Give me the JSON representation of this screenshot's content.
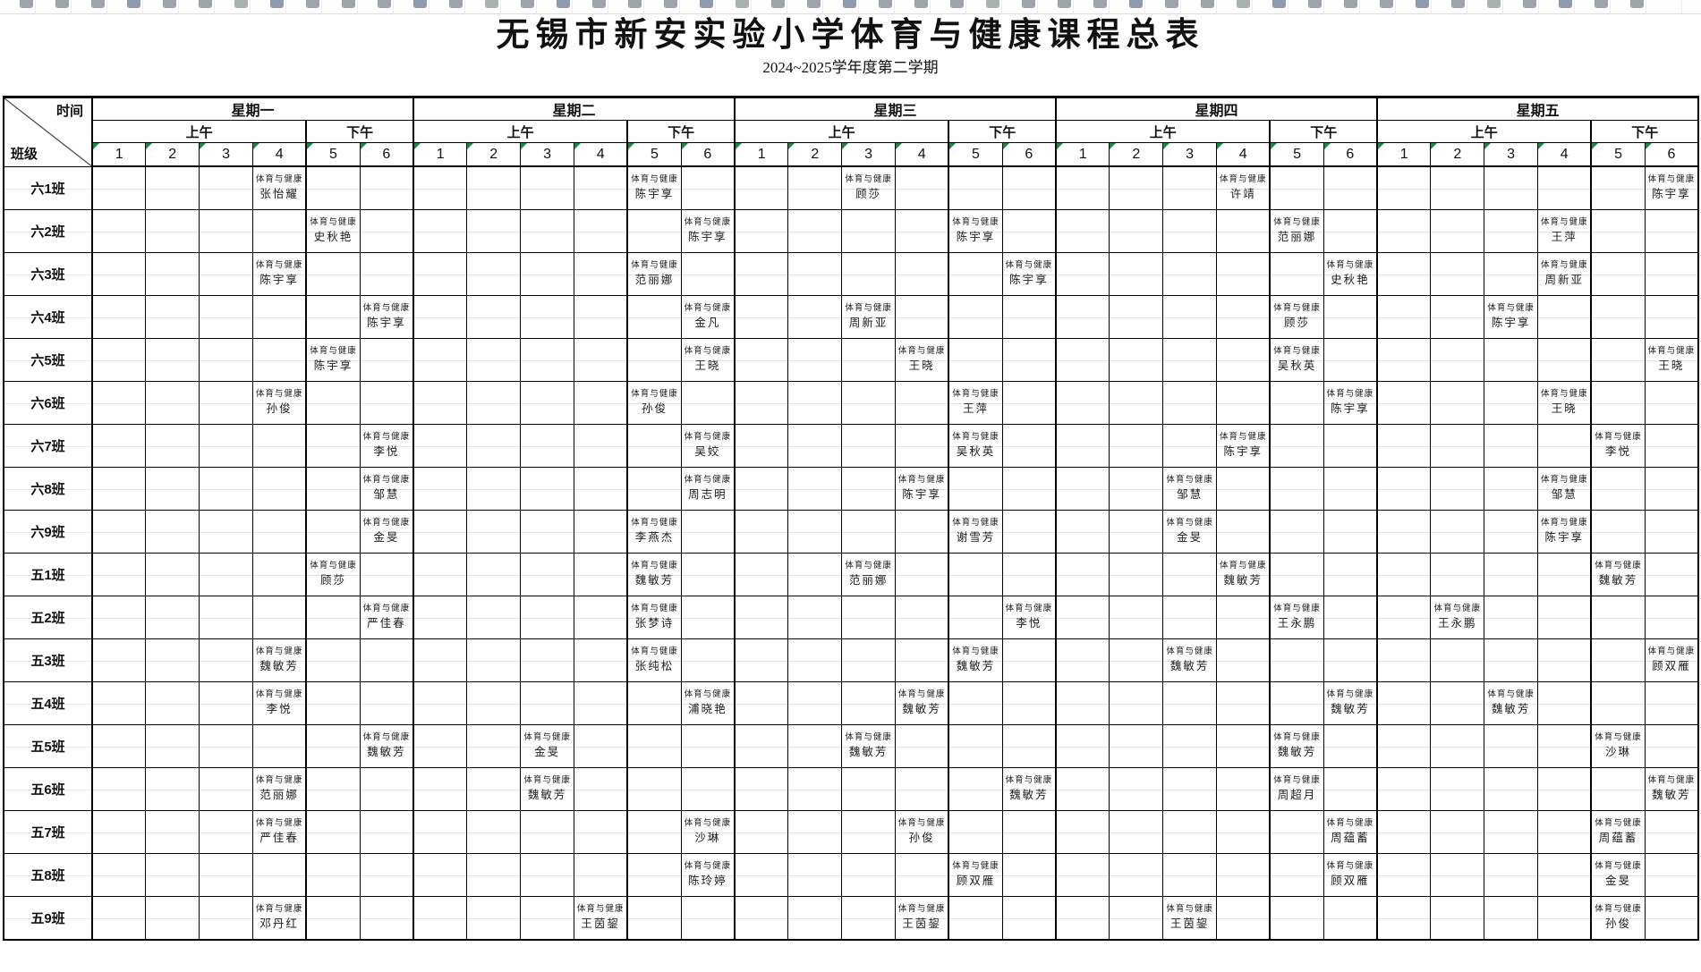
{
  "toolbar": {
    "icon_count": 46
  },
  "title": "无锡市新安实验小学体育与健康课程总表",
  "subtitle": "2024~2025学年度第二学期",
  "header": {
    "corner_top": "时间",
    "corner_bottom": "班级",
    "days": [
      "星期一",
      "星期二",
      "星期三",
      "星期四",
      "星期五"
    ],
    "sessions": [
      "上午",
      "下午"
    ],
    "periods": [
      "1",
      "2",
      "3",
      "4",
      "5",
      "6"
    ],
    "morning_period_count": 4
  },
  "subject": "体育与健康",
  "accent_colors": {
    "error_marker_green": "#168a3f",
    "grid_black": "#000000",
    "faint_grid": "#e3e3e3"
  },
  "rows": [
    {
      "name": "六1班",
      "lessons": [
        {
          "d": 0,
          "p": 4,
          "t": "张怡耀"
        },
        {
          "d": 1,
          "p": 5,
          "t": "陈宇享"
        },
        {
          "d": 2,
          "p": 3,
          "t": "顾莎"
        },
        {
          "d": 3,
          "p": 4,
          "t": "许靖"
        },
        {
          "d": 4,
          "p": 6,
          "t": "陈宇享"
        }
      ]
    },
    {
      "name": "六2班",
      "lessons": [
        {
          "d": 0,
          "p": 5,
          "t": "史秋艳"
        },
        {
          "d": 1,
          "p": 6,
          "t": "陈宇享"
        },
        {
          "d": 2,
          "p": 5,
          "t": "陈宇享"
        },
        {
          "d": 3,
          "p": 5,
          "t": "范丽娜"
        },
        {
          "d": 4,
          "p": 4,
          "t": "王萍"
        }
      ]
    },
    {
      "name": "六3班",
      "lessons": [
        {
          "d": 0,
          "p": 4,
          "t": "陈宇享"
        },
        {
          "d": 1,
          "p": 5,
          "t": "范丽娜"
        },
        {
          "d": 2,
          "p": 6,
          "t": "陈宇享"
        },
        {
          "d": 3,
          "p": 6,
          "t": "史秋艳"
        },
        {
          "d": 4,
          "p": 4,
          "t": "周新亚"
        }
      ]
    },
    {
      "name": "六4班",
      "lessons": [
        {
          "d": 0,
          "p": 6,
          "t": "陈宇享"
        },
        {
          "d": 1,
          "p": 6,
          "t": "金凡"
        },
        {
          "d": 2,
          "p": 3,
          "t": "周新亚"
        },
        {
          "d": 3,
          "p": 5,
          "t": "顾莎"
        },
        {
          "d": 4,
          "p": 3,
          "t": "陈宇享"
        }
      ]
    },
    {
      "name": "六5班",
      "lessons": [
        {
          "d": 0,
          "p": 5,
          "t": "陈宇享"
        },
        {
          "d": 1,
          "p": 6,
          "t": "王晓"
        },
        {
          "d": 2,
          "p": 4,
          "t": "王晓"
        },
        {
          "d": 3,
          "p": 5,
          "t": "吴秋英"
        },
        {
          "d": 4,
          "p": 6,
          "t": "王晓"
        }
      ]
    },
    {
      "name": "六6班",
      "lessons": [
        {
          "d": 0,
          "p": 4,
          "t": "孙俊"
        },
        {
          "d": 1,
          "p": 5,
          "t": "孙俊"
        },
        {
          "d": 2,
          "p": 5,
          "t": "王萍"
        },
        {
          "d": 3,
          "p": 6,
          "t": "陈宇享"
        },
        {
          "d": 4,
          "p": 4,
          "t": "王晓"
        }
      ]
    },
    {
      "name": "六7班",
      "lessons": [
        {
          "d": 0,
          "p": 6,
          "t": "李悦"
        },
        {
          "d": 1,
          "p": 6,
          "t": "吴姣"
        },
        {
          "d": 2,
          "p": 5,
          "t": "吴秋英"
        },
        {
          "d": 3,
          "p": 4,
          "t": "陈宇享"
        },
        {
          "d": 4,
          "p": 5,
          "t": "李悦"
        }
      ]
    },
    {
      "name": "六8班",
      "lessons": [
        {
          "d": 0,
          "p": 6,
          "t": "邹慧"
        },
        {
          "d": 1,
          "p": 6,
          "t": "周志明"
        },
        {
          "d": 2,
          "p": 4,
          "t": "陈宇享"
        },
        {
          "d": 3,
          "p": 3,
          "t": "邹慧"
        },
        {
          "d": 4,
          "p": 4,
          "t": "邹慧"
        }
      ]
    },
    {
      "name": "六9班",
      "lessons": [
        {
          "d": 0,
          "p": 6,
          "t": "金旻"
        },
        {
          "d": 1,
          "p": 5,
          "t": "李燕杰"
        },
        {
          "d": 2,
          "p": 5,
          "t": "谢雪芳"
        },
        {
          "d": 3,
          "p": 3,
          "t": "金旻"
        },
        {
          "d": 4,
          "p": 4,
          "t": "陈宇享"
        }
      ]
    },
    {
      "name": "五1班",
      "lessons": [
        {
          "d": 0,
          "p": 5,
          "t": "顾莎"
        },
        {
          "d": 1,
          "p": 5,
          "t": "魏敏芳"
        },
        {
          "d": 2,
          "p": 3,
          "t": "范丽娜"
        },
        {
          "d": 3,
          "p": 4,
          "t": "魏敏芳"
        },
        {
          "d": 4,
          "p": 5,
          "t": "魏敏芳"
        }
      ]
    },
    {
      "name": "五2班",
      "lessons": [
        {
          "d": 0,
          "p": 6,
          "t": "严佳春"
        },
        {
          "d": 1,
          "p": 5,
          "t": "张梦诗"
        },
        {
          "d": 2,
          "p": 6,
          "t": "李悦"
        },
        {
          "d": 3,
          "p": 5,
          "t": "王永鹏"
        },
        {
          "d": 4,
          "p": 2,
          "t": "王永鹏"
        }
      ]
    },
    {
      "name": "五3班",
      "lessons": [
        {
          "d": 0,
          "p": 4,
          "t": "魏敏芳"
        },
        {
          "d": 1,
          "p": 5,
          "t": "张纯松"
        },
        {
          "d": 2,
          "p": 5,
          "t": "魏敏芳"
        },
        {
          "d": 3,
          "p": 3,
          "t": "魏敏芳"
        },
        {
          "d": 4,
          "p": 6,
          "t": "顾双雁"
        }
      ]
    },
    {
      "name": "五4班",
      "lessons": [
        {
          "d": 0,
          "p": 4,
          "t": "李悦"
        },
        {
          "d": 1,
          "p": 6,
          "t": "浦晓艳"
        },
        {
          "d": 2,
          "p": 4,
          "t": "魏敏芳"
        },
        {
          "d": 3,
          "p": 6,
          "t": "魏敏芳"
        },
        {
          "d": 4,
          "p": 3,
          "t": "魏敏芳"
        }
      ]
    },
    {
      "name": "五5班",
      "lessons": [
        {
          "d": 0,
          "p": 6,
          "t": "魏敏芳"
        },
        {
          "d": 1,
          "p": 3,
          "t": "金旻"
        },
        {
          "d": 2,
          "p": 3,
          "t": "魏敏芳"
        },
        {
          "d": 3,
          "p": 5,
          "t": "魏敏芳"
        },
        {
          "d": 4,
          "p": 5,
          "t": "沙琳"
        }
      ]
    },
    {
      "name": "五6班",
      "lessons": [
        {
          "d": 0,
          "p": 4,
          "t": "范丽娜"
        },
        {
          "d": 1,
          "p": 3,
          "t": "魏敏芳"
        },
        {
          "d": 2,
          "p": 6,
          "t": "魏敏芳"
        },
        {
          "d": 3,
          "p": 5,
          "t": "周超月"
        },
        {
          "d": 4,
          "p": 6,
          "t": "魏敏芳"
        }
      ]
    },
    {
      "name": "五7班",
      "lessons": [
        {
          "d": 0,
          "p": 4,
          "t": "严佳春"
        },
        {
          "d": 1,
          "p": 6,
          "t": "沙琳"
        },
        {
          "d": 2,
          "p": 4,
          "t": "孙俊"
        },
        {
          "d": 3,
          "p": 6,
          "t": "周蕴蓄"
        },
        {
          "d": 4,
          "p": 5,
          "t": "周蕴蓄"
        }
      ]
    },
    {
      "name": "五8班",
      "lessons": [
        {
          "d": 1,
          "p": 6,
          "t": "陈玲婷"
        },
        {
          "d": 2,
          "p": 5,
          "t": "顾双雁"
        },
        {
          "d": 3,
          "p": 6,
          "t": "顾双雁"
        },
        {
          "d": 4,
          "p": 5,
          "t": "金旻"
        }
      ]
    },
    {
      "name": "五9班",
      "lessons": [
        {
          "d": 0,
          "p": 4,
          "t": "邓丹红"
        },
        {
          "d": 1,
          "p": 4,
          "t": "王茵鋆"
        },
        {
          "d": 2,
          "p": 4,
          "t": "王茵鋆"
        },
        {
          "d": 3,
          "p": 3,
          "t": "王茵鋆"
        },
        {
          "d": 4,
          "p": 5,
          "t": "孙俊"
        }
      ]
    }
  ]
}
